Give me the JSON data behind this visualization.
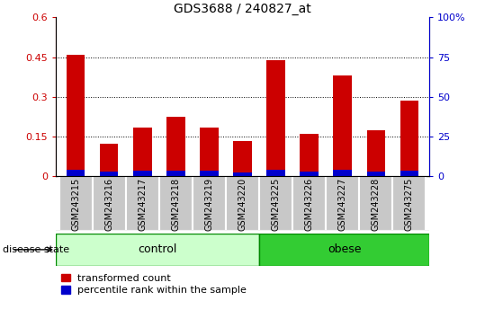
{
  "title": "GDS3688 / 240827_at",
  "categories": [
    "GSM243215",
    "GSM243216",
    "GSM243217",
    "GSM243218",
    "GSM243219",
    "GSM243220",
    "GSM243225",
    "GSM243226",
    "GSM243227",
    "GSM243228",
    "GSM243275"
  ],
  "red_values": [
    0.46,
    0.125,
    0.185,
    0.225,
    0.185,
    0.135,
    0.44,
    0.16,
    0.38,
    0.175,
    0.285
  ],
  "blue_values": [
    0.025,
    0.018,
    0.022,
    0.022,
    0.022,
    0.016,
    0.025,
    0.018,
    0.025,
    0.018,
    0.022
  ],
  "ylim_left": [
    0,
    0.6
  ],
  "ylim_right": [
    0,
    100
  ],
  "yticks_left": [
    0,
    0.15,
    0.3,
    0.45,
    0.6
  ],
  "yticks_right": [
    0,
    25,
    50,
    75,
    100
  ],
  "ytick_labels_left": [
    "0",
    "0.15",
    "0.3",
    "0.45",
    "0.6"
  ],
  "ytick_labels_right": [
    "0",
    "25",
    "50",
    "75",
    "100%"
  ],
  "left_color": "#cc0000",
  "right_color": "#0000cc",
  "bar_width": 0.55,
  "n_control": 6,
  "n_obese": 5,
  "control_label": "control",
  "obese_label": "obese",
  "control_color_light": "#ccffcc",
  "obese_color_dark": "#33cc33",
  "group_border_color": "#008800",
  "disease_state_label": "disease state",
  "legend_red": "transformed count",
  "legend_blue": "percentile rank within the sample",
  "bg_xtick": "#c8c8c8",
  "dotted_line_color": "#000000",
  "title_fontsize": 10,
  "tick_fontsize": 8,
  "category_fontsize": 7,
  "legend_fontsize": 8
}
